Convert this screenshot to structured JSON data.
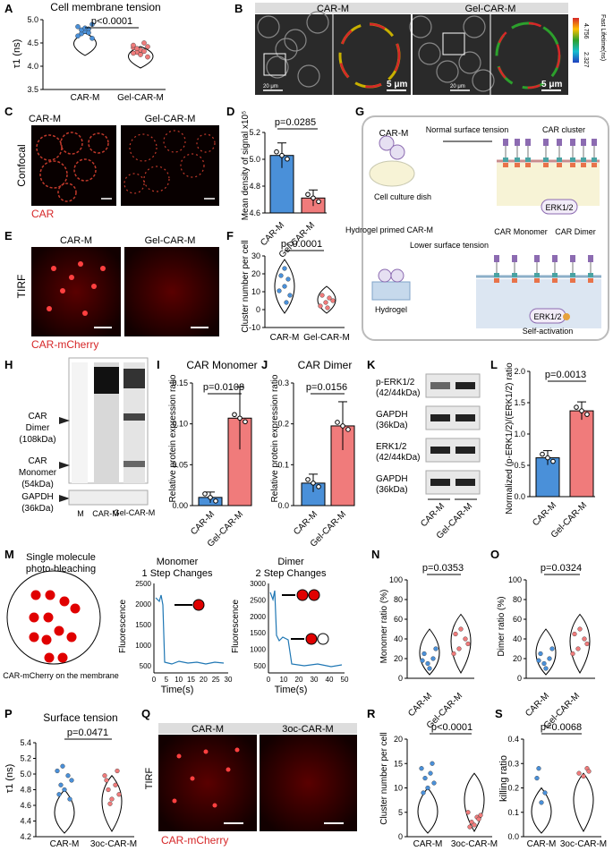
{
  "colors": {
    "blue": "#4a90d9",
    "red": "#f07b7b",
    "pink": "#f5a3a3",
    "trace": "#1f77b4",
    "dark": "#000000",
    "membrane": "#d62728"
  },
  "panels": {
    "A": {
      "letter": "A",
      "title": "Cell membrane tension",
      "ylabel": "τ1 (ns)",
      "yticks": [
        "5.0",
        "4.5",
        "4.0",
        "3.5"
      ],
      "groups": [
        "CAR-M",
        "Gel-CAR-M"
      ],
      "pvalue": "p<0.0001",
      "chart_data": {
        "type": "scatter",
        "categories": [
          "CAR-M",
          "Gel-CAR-M"
        ],
        "series": [
          {
            "values": [
              4.85,
              4.7,
              4.75,
              4.8,
              4.9,
              4.65,
              4.78,
              4.82,
              4.72,
              4.6
            ]
          },
          {
            "values": [
              4.4,
              4.3,
              4.35,
              4.5,
              4.2,
              4.45,
              4.38,
              4.25,
              4.32,
              4.42,
              4.28
            ]
          }
        ],
        "ylim": [
          3.5,
          5.0
        ]
      }
    },
    "B": {
      "letter": "B",
      "labels": [
        "CAR-M",
        "Gel-CAR-M"
      ],
      "scale_20": "20 μm",
      "scale_5": "5 μm",
      "cbar_title": "Fast Lifetime(ns)",
      "cbar_top": "4.756",
      "cbar_bottom": "2.327"
    },
    "C": {
      "letter": "C",
      "row_label": "Confocal",
      "labels": [
        "CAR-M",
        "Gel-CAR-M"
      ],
      "caption": "CAR"
    },
    "D": {
      "letter": "D",
      "ylabel": "Mean density of signal x10⁵",
      "yticks": [
        "5.2",
        "5.0",
        "4.8",
        "4.6"
      ],
      "groups": [
        "CAR-M",
        "Gel-CAR-M"
      ],
      "pvalue": "p=0.0285",
      "chart_data": {
        "type": "bar",
        "categories": [
          "CAR-M",
          "Gel-CAR-M"
        ],
        "values": [
          5.1,
          4.73
        ],
        "ylim": [
          4.6,
          5.3
        ]
      }
    },
    "E": {
      "letter": "E",
      "row_label": "TIRF",
      "labels": [
        "CAR-M",
        "Gel-CAR-M"
      ],
      "caption": "CAR-mCherry"
    },
    "F": {
      "letter": "F",
      "ylabel": "Cluster number per cell",
      "yticks": [
        "30",
        "20",
        "10",
        "0",
        "-10"
      ],
      "groups": [
        "CAR-M",
        "Gel-CAR-M"
      ],
      "pvalue": "p<0.0001",
      "chart_data": {
        "type": "scatter",
        "categories": [
          "CAR-M",
          "Gel-CAR-M"
        ],
        "ylim": [
          -10,
          30
        ]
      }
    },
    "G": {
      "letter": "G",
      "car_m": "CAR-M",
      "normal_tension": "Normal surface tension",
      "car_cluster": "CAR cluster",
      "dish": "Cell culture dish",
      "erk": "ERK1/2",
      "hydrogel_primed": "Hydrogel primed CAR-M",
      "lower_tension": "Lower surface tension",
      "car_monomer": "CAR Monomer",
      "car_dimer": "CAR Dimer",
      "hydrogel": "Hydrogel",
      "self_activation": "Self-activation"
    },
    "H": {
      "letter": "H",
      "dimer": "CAR Dimer (108kDa)",
      "monomer": "CAR Monomer (54kDa)",
      "gapdh": "GAPDH (36kDa)",
      "lanes": [
        "M",
        "CAR-M",
        "Gel-CAR-M"
      ]
    },
    "I": {
      "letter": "I",
      "title": "CAR Monomer",
      "ylabel": "Relative protein expression ratio",
      "yticks": [
        "0.15",
        "0.10",
        "0.05",
        "0.00"
      ],
      "groups": [
        "CAR-M",
        "Gel-CAR-M"
      ],
      "pvalue": "p=0.0108",
      "chart_data": {
        "type": "bar",
        "categories": [
          "CAR-M",
          "Gel-CAR-M"
        ],
        "values": [
          0.01,
          0.107
        ],
        "ylim": [
          0,
          0.15
        ]
      }
    },
    "J": {
      "letter": "J",
      "title": "CAR Dimer",
      "ylabel": "Relative protein expression ratio",
      "yticks": [
        "0.3",
        "0.2",
        "0.1",
        "0.0"
      ],
      "groups": [
        "CAR-M",
        "Gel-CAR-M"
      ],
      "pvalue": "p=0.0156",
      "chart_data": {
        "type": "bar",
        "categories": [
          "CAR-M",
          "Gel-CAR-M"
        ],
        "values": [
          0.055,
          0.195
        ],
        "ylim": [
          0,
          0.3
        ]
      }
    },
    "K": {
      "letter": "K",
      "bands": [
        "p-ERK1/2 (42/44kDa)",
        "GAPDH (36kDa)",
        "ERK1/2 (42/44kDa)",
        "GAPDH (36kDa)"
      ],
      "groups": [
        "CAR-M",
        "Gel-CAR-M"
      ]
    },
    "L": {
      "letter": "L",
      "ylabel": "Normalized (p-ERK1/2)/(ERK1/2) ratio",
      "yticks": [
        "2.0",
        "1.5",
        "1.0",
        "0.5",
        "0.0"
      ],
      "groups": [
        "CAR-M",
        "Gel-CAR-M"
      ],
      "pvalue": "p=0.0013",
      "chart_data": {
        "type": "bar",
        "categories": [
          "CAR-M",
          "Gel-CAR-M"
        ],
        "values": [
          0.62,
          1.37
        ],
        "ylim": [
          0,
          2.0
        ]
      }
    },
    "M": {
      "letter": "M",
      "title": "Single molecule photo-bleaching",
      "caption": "CAR-mCherry on the membrane",
      "monomer_title": "Monomer",
      "monomer_sub": "1 Step Changes",
      "dimer_title": "Dimer",
      "dimer_sub": "2 Step Changes",
      "ylabel": "Fluorescence",
      "xlabel": "Time(s)",
      "yticks1": [
        "2500",
        "2000",
        "1500",
        "1000",
        "500"
      ],
      "xticks1": [
        "0",
        "5",
        "10",
        "15",
        "20",
        "25",
        "30"
      ],
      "yticks2": [
        "3000",
        "2500",
        "2000",
        "1500",
        "1000",
        "500"
      ],
      "xticks2": [
        "0",
        "10",
        "20",
        "30",
        "40",
        "50"
      ]
    },
    "N": {
      "letter": "N",
      "ylabel": "Monomer ratio (%)",
      "yticks": [
        "100",
        "80",
        "60",
        "40",
        "20",
        "0"
      ],
      "groups": [
        "CAR-M",
        "Gel-CAR-M"
      ],
      "pvalue": "p=0.0353"
    },
    "O": {
      "letter": "O",
      "ylabel": "Dimer ratio (%)",
      "yticks": [
        "100",
        "80",
        "60",
        "40",
        "20",
        "0"
      ],
      "groups": [
        "CAR-M",
        "Gel-CAR-M"
      ],
      "pvalue": "p=0.0324"
    },
    "P": {
      "letter": "P",
      "title": "Surface tension",
      "ylabel": "τ1 (ns)",
      "yticks": [
        "5.4",
        "5.2",
        "5.0",
        "4.8",
        "4.6",
        "4.4",
        "4.2"
      ],
      "groups": [
        "CAR-M",
        "3oc-CAR-M"
      ],
      "pvalue": "p=0.0471"
    },
    "Q": {
      "letter": "Q",
      "row_label": "TIRF",
      "labels": [
        "CAR-M",
        "3oc-CAR-M"
      ],
      "caption": "CAR-mCherry"
    },
    "R": {
      "letter": "R",
      "ylabel": "Cluster number per cell",
      "yticks": [
        "20",
        "15",
        "10",
        "5",
        "0"
      ],
      "groups": [
        "CAR-M",
        "3oc-CAR-M"
      ],
      "pvalue": "p<0.0001"
    },
    "S": {
      "letter": "S",
      "ylabel": "killing ratio",
      "yticks": [
        "0.4",
        "0.3",
        "0.2",
        "0.1",
        "0.0"
      ],
      "groups": [
        "CAR-M",
        "3oc-CAR-M"
      ],
      "pvalue": "p=0.0068"
    }
  }
}
